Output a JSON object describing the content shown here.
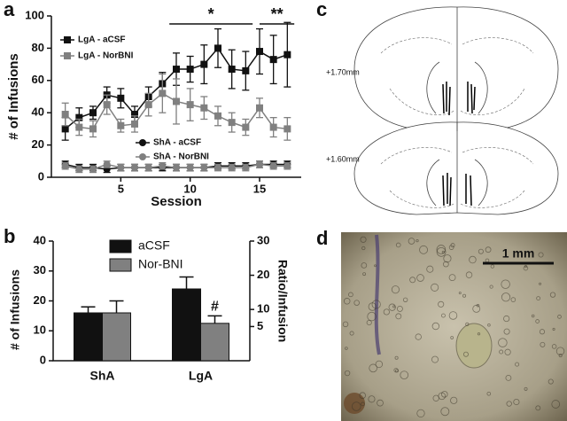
{
  "figure": {
    "panel_labels": [
      "a",
      "b",
      "c",
      "d"
    ],
    "atlas_levels": [
      "+1.70mm",
      "+1.60mm"
    ],
    "scale_bar": "1 mm"
  },
  "chart_data": [
    {
      "type": "line",
      "xlabel": "Session",
      "ylabel": "# of Infusions",
      "x": [
        1,
        2,
        3,
        4,
        5,
        6,
        7,
        8,
        9,
        10,
        11,
        12,
        13,
        14,
        15,
        16,
        17
      ],
      "xlim": [
        0,
        18
      ],
      "xticks": [
        5,
        10,
        15
      ],
      "ylim": [
        0,
        100
      ],
      "yticks": [
        0,
        20,
        40,
        60,
        80,
        100
      ],
      "annotations": [
        "*",
        "**"
      ],
      "series": [
        {
          "name": "LgA - aCSF",
          "color": "#111111",
          "marker": "square",
          "values": [
            30,
            37,
            40,
            51,
            49,
            39,
            50,
            58,
            67,
            67,
            70,
            80,
            67,
            66,
            78,
            73,
            76
          ],
          "errors": [
            7,
            6,
            4,
            5,
            6,
            5,
            6,
            7,
            10,
            8,
            12,
            12,
            12,
            12,
            14,
            15,
            20
          ]
        },
        {
          "name": "LgA - NorBNI",
          "color": "#808080",
          "marker": "square",
          "values": [
            39,
            31,
            30,
            45,
            32,
            33,
            45,
            52,
            47,
            45,
            43,
            38,
            34,
            31,
            43,
            31,
            30
          ],
          "errors": [
            7,
            5,
            5,
            6,
            4,
            5,
            7,
            12,
            14,
            10,
            7,
            6,
            6,
            5,
            6,
            6,
            7
          ]
        },
        {
          "name": "ShA - aCSF",
          "color": "#111111",
          "marker": "circle",
          "values": [
            8,
            6,
            6,
            5,
            6,
            6,
            6,
            6,
            6,
            6,
            6,
            7,
            7,
            7,
            8,
            8,
            8
          ],
          "errors": [
            2,
            2,
            2,
            2,
            2,
            2,
            2,
            2,
            2,
            2,
            2,
            2,
            2,
            2,
            2,
            2,
            2
          ]
        },
        {
          "name": "ShA - NorBNI",
          "color": "#808080",
          "marker": "circle",
          "values": [
            7,
            5,
            5,
            8,
            6,
            6,
            6,
            7,
            6,
            6,
            6,
            6,
            6,
            6,
            8,
            7,
            7
          ],
          "errors": [
            2,
            2,
            2,
            2,
            2,
            2,
            2,
            2,
            2,
            2,
            2,
            2,
            2,
            2,
            2,
            2,
            2
          ]
        }
      ]
    },
    {
      "type": "bar",
      "ylabel": "# of Infusions",
      "y2label": "Ratio/Infusion",
      "categories": [
        "ShA",
        "LgA"
      ],
      "ylim": [
        0,
        40
      ],
      "yticks": [
        0,
        10,
        20,
        30,
        40
      ],
      "y2lim": [
        -5,
        30
      ],
      "y2ticks": [
        5,
        10,
        20,
        30
      ],
      "annotations": [
        "#"
      ],
      "series": [
        {
          "name": "aCSF",
          "color": "#111111",
          "values": [
            16,
            24
          ],
          "errors": [
            2,
            4
          ]
        },
        {
          "name": "Nor-BNI",
          "color": "#808080",
          "values": [
            16,
            12.5
          ],
          "errors": [
            4,
            2.5
          ]
        }
      ]
    }
  ]
}
